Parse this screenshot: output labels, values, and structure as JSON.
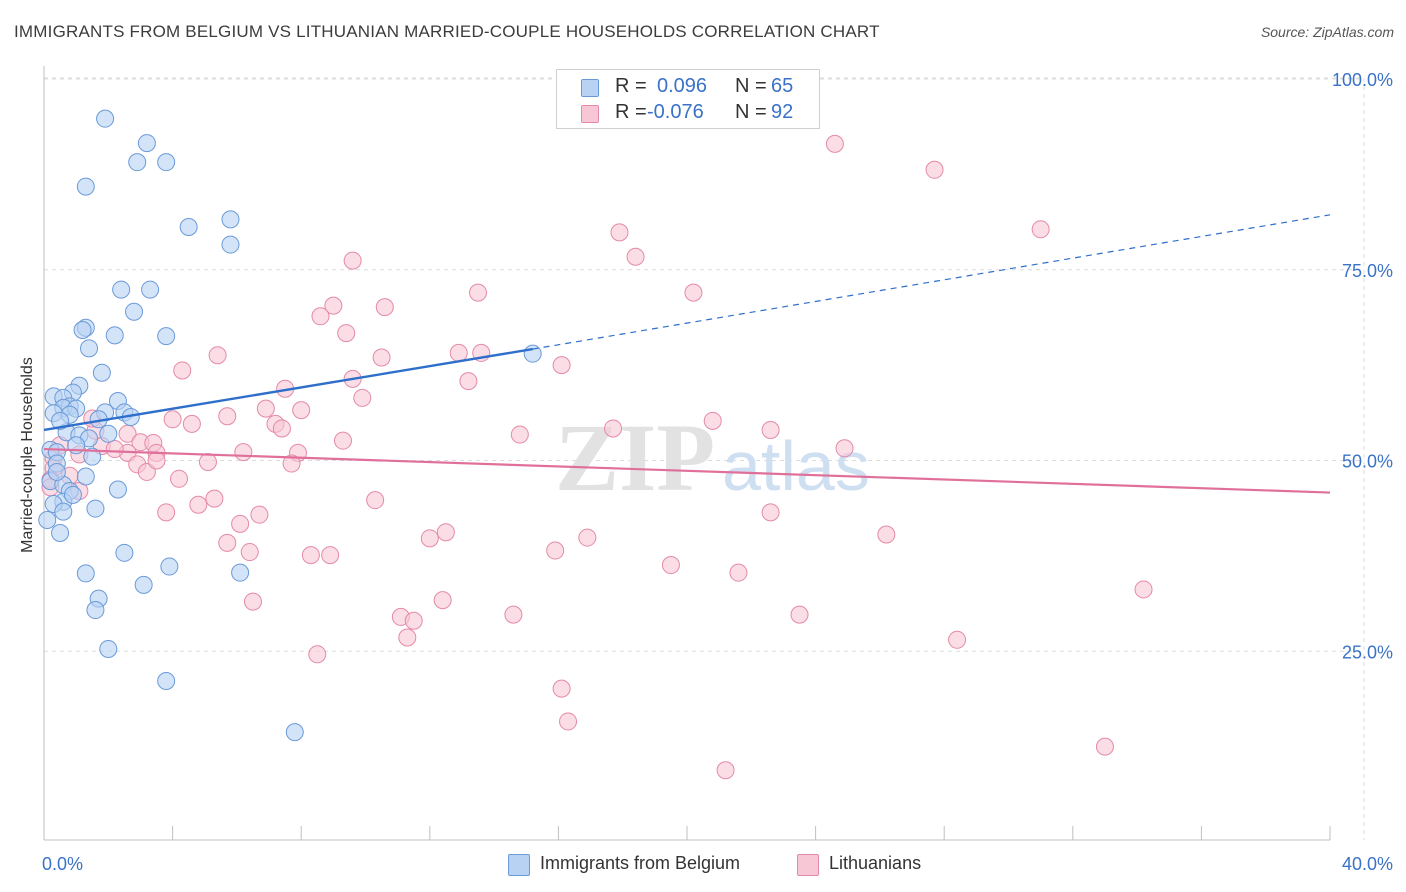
{
  "header": {
    "title": "IMMIGRANTS FROM BELGIUM VS LITHUANIAN MARRIED-COUPLE HOUSEHOLDS CORRELATION CHART",
    "source": "Source: ZipAtlas.com"
  },
  "legend_top": {
    "rows": [
      {
        "r_label": "R =",
        "r_value": "0.096",
        "n_label": "N =",
        "n_value": "65"
      },
      {
        "r_label": "R =",
        "r_value": "-0.076",
        "n_label": "N =",
        "n_value": "92"
      }
    ]
  },
  "legend_bottom": {
    "items": [
      "Immigrants from Belgium",
      "Lithuanians"
    ]
  },
  "watermark": {
    "zip": "ZIP",
    "atlas": "atlas"
  },
  "colors": {
    "blue_fill": "#b8d2f3",
    "blue_stroke": "#6a9ad8",
    "blue_line": "#2f6fcc",
    "pink_fill": "#f8c7d6",
    "pink_stroke": "#e48aa8",
    "pink_line": "#e0709a",
    "tick_label": "#3a72c8",
    "grid": "#dcdcdc"
  },
  "chart_data": {
    "type": "scatter",
    "title": "IMMIGRANTS FROM BELGIUM VS LITHUANIAN MARRIED-COUPLE HOUSEHOLDS CORRELATION CHART",
    "xlabel": "",
    "ylabel": "Married-couple Households",
    "xlim": [
      0,
      40
    ],
    "ylim": [
      0,
      105
    ],
    "x_tick_labels": [
      "0.0%",
      "40.0%"
    ],
    "y_ticks": [
      25,
      50,
      75,
      100
    ],
    "y_tick_labels": [
      "25.0%",
      "50.0%",
      "75.0%",
      "100.0%"
    ],
    "grid": true,
    "series": [
      {
        "name": "Immigrants from Belgium",
        "r": 0.096,
        "n": 65,
        "trend": {
          "x0": 0,
          "y0": 54.0,
          "x1": 15.2,
          "y1": 64.6,
          "dash_to_x": 40,
          "dash_to_y": 82.2
        },
        "points": [
          [
            1.9,
            94.8
          ],
          [
            3.2,
            91.6
          ],
          [
            2.9,
            89.1
          ],
          [
            3.8,
            89.1
          ],
          [
            1.3,
            85.9
          ],
          [
            5.8,
            81.6
          ],
          [
            4.5,
            80.6
          ],
          [
            5.8,
            78.3
          ],
          [
            2.4,
            72.4
          ],
          [
            3.3,
            72.4
          ],
          [
            2.8,
            69.5
          ],
          [
            1.3,
            67.4
          ],
          [
            1.2,
            67.1
          ],
          [
            2.2,
            66.4
          ],
          [
            3.8,
            66.3
          ],
          [
            1.4,
            64.7
          ],
          [
            15.2,
            64.0
          ],
          [
            1.8,
            61.5
          ],
          [
            1.1,
            59.8
          ],
          [
            0.9,
            58.9
          ],
          [
            0.3,
            58.4
          ],
          [
            0.6,
            58.2
          ],
          [
            2.3,
            57.8
          ],
          [
            0.8,
            57.1
          ],
          [
            0.6,
            56.9
          ],
          [
            1.0,
            56.8
          ],
          [
            0.3,
            56.2
          ],
          [
            1.9,
            56.3
          ],
          [
            0.8,
            56.0
          ],
          [
            2.5,
            56.3
          ],
          [
            2.7,
            55.7
          ],
          [
            1.7,
            55.4
          ],
          [
            0.7,
            53.7
          ],
          [
            1.1,
            53.3
          ],
          [
            1.4,
            52.9
          ],
          [
            0.2,
            51.4
          ],
          [
            0.4,
            51.1
          ],
          [
            0.4,
            49.6
          ],
          [
            1.3,
            47.9
          ],
          [
            0.2,
            47.3
          ],
          [
            0.6,
            46.8
          ],
          [
            2.3,
            46.2
          ],
          [
            0.8,
            46.0
          ],
          [
            0.6,
            44.6
          ],
          [
            0.3,
            44.3
          ],
          [
            1.6,
            43.7
          ],
          [
            0.6,
            43.3
          ],
          [
            0.1,
            42.2
          ],
          [
            2.5,
            37.9
          ],
          [
            3.9,
            36.1
          ],
          [
            1.3,
            35.2
          ],
          [
            6.1,
            35.3
          ],
          [
            3.1,
            33.7
          ],
          [
            1.7,
            31.9
          ],
          [
            1.6,
            30.4
          ],
          [
            2.0,
            25.3
          ],
          [
            3.8,
            21.1
          ],
          [
            7.8,
            14.4
          ],
          [
            0.5,
            55.2
          ],
          [
            1.0,
            52.0
          ],
          [
            0.4,
            48.5
          ],
          [
            2.0,
            53.5
          ],
          [
            1.5,
            50.5
          ],
          [
            0.9,
            45.5
          ],
          [
            0.5,
            40.5
          ]
        ]
      },
      {
        "name": "Lithuanians",
        "r": -0.076,
        "n": 92,
        "trend": {
          "x0": 0,
          "y0": 51.5,
          "x1": 40,
          "y1": 45.8
        },
        "points": [
          [
            24.6,
            91.5
          ],
          [
            27.7,
            88.1
          ],
          [
            17.9,
            79.9
          ],
          [
            31.0,
            80.3
          ],
          [
            18.4,
            76.7
          ],
          [
            9.6,
            76.2
          ],
          [
            13.5,
            72.0
          ],
          [
            20.2,
            72.0
          ],
          [
            9.0,
            70.3
          ],
          [
            10.6,
            70.1
          ],
          [
            8.6,
            68.9
          ],
          [
            9.4,
            66.7
          ],
          [
            12.9,
            64.1
          ],
          [
            13.6,
            64.1
          ],
          [
            5.4,
            63.8
          ],
          [
            10.5,
            63.5
          ],
          [
            16.1,
            62.5
          ],
          [
            4.3,
            61.8
          ],
          [
            9.6,
            60.7
          ],
          [
            13.2,
            60.4
          ],
          [
            7.5,
            59.4
          ],
          [
            9.9,
            58.2
          ],
          [
            6.9,
            56.8
          ],
          [
            8.0,
            56.6
          ],
          [
            5.7,
            55.8
          ],
          [
            4.0,
            55.4
          ],
          [
            20.8,
            55.2
          ],
          [
            7.2,
            54.8
          ],
          [
            4.6,
            54.8
          ],
          [
            7.4,
            54.2
          ],
          [
            17.7,
            54.2
          ],
          [
            22.6,
            54.0
          ],
          [
            1.6,
            53.9
          ],
          [
            2.6,
            53.5
          ],
          [
            14.8,
            53.4
          ],
          [
            9.3,
            52.6
          ],
          [
            3.0,
            52.4
          ],
          [
            3.4,
            52.3
          ],
          [
            1.8,
            51.9
          ],
          [
            24.9,
            51.6
          ],
          [
            6.2,
            51.1
          ],
          [
            3.5,
            51.0
          ],
          [
            7.9,
            51.0
          ],
          [
            2.6,
            51.0
          ],
          [
            1.1,
            50.8
          ],
          [
            0.3,
            50.3
          ],
          [
            2.9,
            49.5
          ],
          [
            5.1,
            49.8
          ],
          [
            7.7,
            49.6
          ],
          [
            0.3,
            49.0
          ],
          [
            3.2,
            48.5
          ],
          [
            4.2,
            47.6
          ],
          [
            0.2,
            47.5
          ],
          [
            0.2,
            46.5
          ],
          [
            1.1,
            46.0
          ],
          [
            5.3,
            45.0
          ],
          [
            10.3,
            44.8
          ],
          [
            4.8,
            44.2
          ],
          [
            3.8,
            43.2
          ],
          [
            22.6,
            43.2
          ],
          [
            6.7,
            42.9
          ],
          [
            6.1,
            41.7
          ],
          [
            12.5,
            40.6
          ],
          [
            12.0,
            39.8
          ],
          [
            16.9,
            39.9
          ],
          [
            26.2,
            40.3
          ],
          [
            5.7,
            39.2
          ],
          [
            6.4,
            38.0
          ],
          [
            15.9,
            38.2
          ],
          [
            8.3,
            37.6
          ],
          [
            8.9,
            37.6
          ],
          [
            19.5,
            36.3
          ],
          [
            21.6,
            35.3
          ],
          [
            34.2,
            33.1
          ],
          [
            6.5,
            31.5
          ],
          [
            12.4,
            31.7
          ],
          [
            11.1,
            29.5
          ],
          [
            14.6,
            29.8
          ],
          [
            11.5,
            29.0
          ],
          [
            23.5,
            29.8
          ],
          [
            11.3,
            26.8
          ],
          [
            28.4,
            26.5
          ],
          [
            8.5,
            24.6
          ],
          [
            16.1,
            20.1
          ],
          [
            16.3,
            15.8
          ],
          [
            33.0,
            12.5
          ],
          [
            21.2,
            9.4
          ],
          [
            3.5,
            50.0
          ],
          [
            1.5,
            55.5
          ],
          [
            0.5,
            52.0
          ],
          [
            2.2,
            51.5
          ],
          [
            0.8,
            48.0
          ]
        ]
      }
    ]
  }
}
